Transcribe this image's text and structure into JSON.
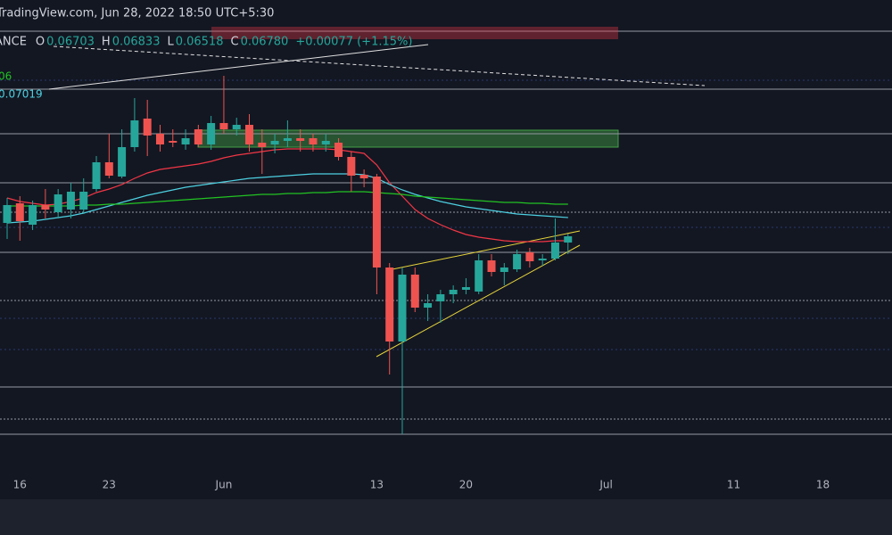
{
  "header": {
    "source": "TradingView.com, Jun 28, 2022 18:50 UTC+5:30",
    "symbol": "ANCE",
    "ohlc": [
      {
        "label": "O",
        "value": "0.06703"
      },
      {
        "label": "H",
        "value": "0.06833"
      },
      {
        "label": "L",
        "value": "0.06518"
      },
      {
        "label": "C",
        "value": "0.06780"
      }
    ],
    "change": "+0.00077 (+1.15%)"
  },
  "indicators": {
    "ma_a": "06",
    "ma_b": "0.07019"
  },
  "chart_data": {
    "type": "candlestick",
    "up_color": "#26a69a",
    "down_color": "#ef5350",
    "xlim": [
      -0.56,
      69.42
    ],
    "ylim": [
      0.0535,
      0.08
    ],
    "xticks": [
      {
        "value": 1,
        "label": "16"
      },
      {
        "value": 8,
        "label": "23"
      },
      {
        "value": 17,
        "label": "Jun"
      },
      {
        "value": 29,
        "label": "13"
      },
      {
        "value": 36,
        "label": "20"
      },
      {
        "value": 47,
        "label": "Jul"
      },
      {
        "value": 57,
        "label": "11"
      },
      {
        "value": 64,
        "label": "18"
      }
    ],
    "open": [
      0.0675,
      0.0686,
      0.0674,
      0.0685,
      0.0681,
      0.06825,
      0.06825,
      0.0694,
      0.0709,
      0.0701,
      0.07175,
      0.07335,
      0.0725,
      0.0721,
      0.0719,
      0.07275,
      0.0719,
      0.0731,
      0.07275,
      0.073,
      0.072,
      0.0719,
      0.0721,
      0.07225,
      0.07225,
      0.0719,
      0.072,
      0.0712,
      0.0702,
      0.0701,
      0.065,
      0.06085,
      0.0646,
      0.06275,
      0.0631,
      0.0635,
      0.06375,
      0.06365,
      0.0654,
      0.06475,
      0.0649,
      0.06585,
      0.0654,
      0.0655,
      0.0664
    ],
    "high": [
      0.0689,
      0.069,
      0.06875,
      0.0694,
      0.0694,
      0.06975,
      0.07,
      0.07125,
      0.0725,
      0.07275,
      0.0745,
      0.0744,
      0.073,
      0.07275,
      0.07275,
      0.073,
      0.0735,
      0.07575,
      0.0734,
      0.0736,
      0.07275,
      0.0725,
      0.07325,
      0.07275,
      0.0725,
      0.0725,
      0.07225,
      0.0715,
      0.0705,
      0.07025,
      0.06525,
      0.065,
      0.065,
      0.0635,
      0.06375,
      0.064,
      0.0644,
      0.06575,
      0.06575,
      0.06525,
      0.066,
      0.0661,
      0.06575,
      0.06775,
      0.0669
    ],
    "low": [
      0.0666,
      0.0665,
      0.0671,
      0.06775,
      0.06775,
      0.06775,
      0.068,
      0.06925,
      0.07,
      0.07,
      0.0715,
      0.07125,
      0.0715,
      0.07175,
      0.0716,
      0.07175,
      0.0716,
      0.0725,
      0.0724,
      0.0715,
      0.07025,
      0.0714,
      0.07175,
      0.0715,
      0.0715,
      0.0715,
      0.071,
      0.06925,
      0.0695,
      0.0635,
      0.059,
      0.05565,
      0.0625,
      0.062,
      0.0619,
      0.063,
      0.0635,
      0.0635,
      0.0645,
      0.064,
      0.06475,
      0.065,
      0.0651,
      0.0654,
      0.06575
    ],
    "close": [
      0.0685,
      0.0676,
      0.0685,
      0.06825,
      0.0691,
      0.06925,
      0.06925,
      0.0709,
      0.07015,
      0.07175,
      0.07325,
      0.0724,
      0.0719,
      0.072,
      0.07225,
      0.0719,
      0.0731,
      0.07275,
      0.073,
      0.0719,
      0.07175,
      0.0721,
      0.07225,
      0.0721,
      0.0719,
      0.0721,
      0.0712,
      0.07015,
      0.07,
      0.065,
      0.06085,
      0.0646,
      0.06275,
      0.063,
      0.0635,
      0.06375,
      0.0639,
      0.0654,
      0.06475,
      0.065,
      0.06575,
      0.06535,
      0.0655,
      0.0664,
      0.06675
    ],
    "series": [
      {
        "color": "#f23645",
        "values": [
          0.0689,
          0.0687,
          0.0686,
          0.0685,
          0.06855,
          0.0687,
          0.0689,
          0.0692,
          0.0694,
          0.06965,
          0.07,
          0.0703,
          0.0705,
          0.0706,
          0.0707,
          0.0708,
          0.07095,
          0.07115,
          0.0713,
          0.0714,
          0.0715,
          0.0716,
          0.07165,
          0.07165,
          0.07165,
          0.07165,
          0.0716,
          0.0715,
          0.0714,
          0.07075,
          0.06975,
          0.069,
          0.06825,
          0.06775,
          0.0674,
          0.0671,
          0.06685,
          0.0667,
          0.0666,
          0.0665,
          0.06645,
          0.06645,
          0.06645,
          0.0665,
          0.0665
        ]
      },
      {
        "color": "#4dd0e1",
        "values": [
          0.0675,
          0.06755,
          0.0676,
          0.0677,
          0.0678,
          0.0679,
          0.06805,
          0.06825,
          0.06845,
          0.06865,
          0.06885,
          0.06905,
          0.0692,
          0.06935,
          0.0695,
          0.0696,
          0.0697,
          0.0698,
          0.0699,
          0.07,
          0.07005,
          0.0701,
          0.07015,
          0.0702,
          0.07025,
          0.07025,
          0.07025,
          0.07025,
          0.0702,
          0.07,
          0.06965,
          0.06935,
          0.0691,
          0.0689,
          0.0687,
          0.06855,
          0.0684,
          0.0683,
          0.0682,
          0.0681,
          0.068,
          0.06795,
          0.0679,
          0.06785,
          0.0678
        ]
      },
      {
        "color": "#22c322",
        "values": [
          0.06845,
          0.06845,
          0.06845,
          0.06845,
          0.06845,
          0.06845,
          0.0685,
          0.0685,
          0.06855,
          0.06855,
          0.0686,
          0.06865,
          0.0687,
          0.06875,
          0.0688,
          0.06885,
          0.0689,
          0.06895,
          0.069,
          0.06905,
          0.0691,
          0.0691,
          0.06915,
          0.06915,
          0.0692,
          0.0692,
          0.06925,
          0.06925,
          0.06925,
          0.0692,
          0.06915,
          0.0691,
          0.069,
          0.06895,
          0.0689,
          0.06885,
          0.0688,
          0.06875,
          0.0687,
          0.06865,
          0.06865,
          0.0686,
          0.0686,
          0.06855,
          0.06855
        ]
      }
    ]
  }
}
